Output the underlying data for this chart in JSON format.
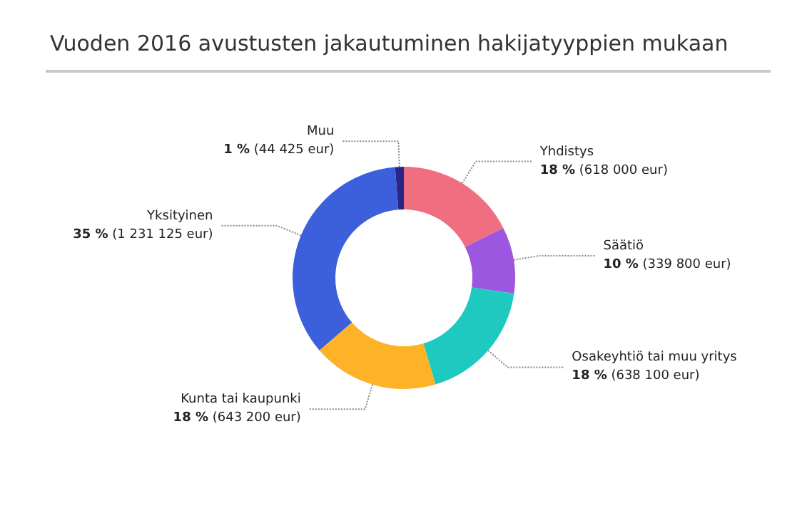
{
  "chart_data": {
    "type": "donut",
    "title": "Vuoden 2016 avustusten jakautuminen hakijatyyppien mukaan",
    "categories": [
      "Yhdistys",
      "Säätiö",
      "Osakeyhtiö tai muu yritys",
      "Kunta tai kaupunki",
      "Yksityinen",
      "Muu"
    ],
    "values": [
      618000,
      339800,
      638100,
      643200,
      1231125,
      44425
    ],
    "colors": [
      "#ef6f80",
      "#9b57e0",
      "#1ecac0",
      "#fdb227",
      "#3c5fdc",
      "#2a2689"
    ],
    "value_labels": [
      "18 % (618 000 eur)",
      "10 % (339 800 eur)",
      "18 % (638 100 eur)",
      "18 % (643 200 eur)",
      "35 % (1 231 125 eur)",
      "1 % (44 425 eur)"
    ],
    "legend": false
  }
}
